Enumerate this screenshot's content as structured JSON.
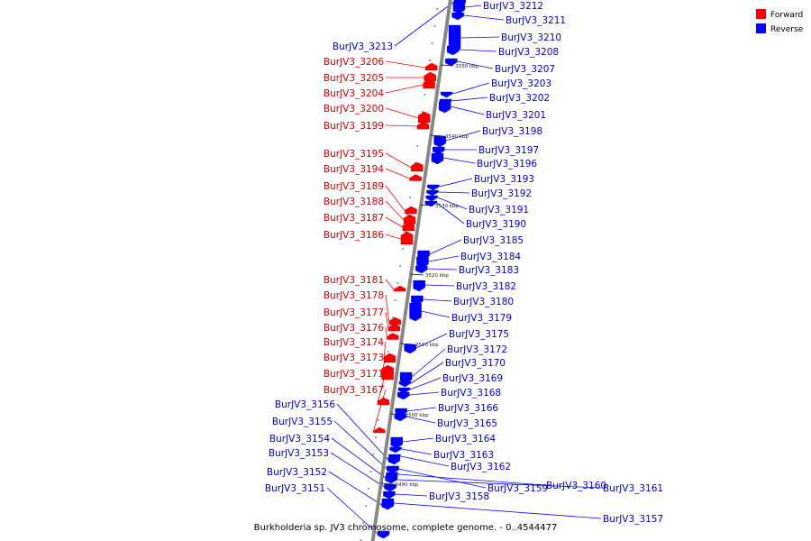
{
  "caption": "Burkholderia sp. JV3 chromosome, complete genome. - 0..4544477",
  "colors": {
    "forward": "#ff0000",
    "reverse": "#0000ff",
    "backbone": "#888888",
    "backbone_edge": "#444444",
    "forward_label": "#cc0000",
    "reverse_label": "#0000cc"
  },
  "legend": {
    "forward_label": "Forward",
    "reverse_label": "Reverse"
  },
  "ticks": [
    "3550 kbp",
    "3540 kbp",
    "3530 kbp",
    "3520 kbp",
    "3510 kbp",
    "3500 kbp",
    "3490 kbp"
  ],
  "forward_genes": [
    "BurJV3_3206",
    "BurJV3_3205",
    "BurJV3_3204",
    "BurJV3_3200",
    "BurJV3_3199",
    "BurJV3_3195",
    "BurJV3_3194",
    "BurJV3_3189",
    "BurJV3_3188",
    "BurJV3_3187",
    "BurJV3_3186",
    "BurJV3_3181",
    "BurJV3_3178",
    "BurJV3_3177",
    "BurJV3_3176",
    "BurJV3_3174",
    "BurJV3_3173",
    "BurJV3_3171",
    "BurJV3_3167"
  ],
  "reverse_genes_left": [
    "BurJV3_3213",
    "BurJV3_3156",
    "BurJV3_3155",
    "BurJV3_3154",
    "BurJV3_3153",
    "BurJV3_3152",
    "BurJV3_3151"
  ],
  "reverse_genes_right": [
    "BurJV3_3212",
    "BurJV3_3211",
    "BurJV3_3210",
    "BurJV3_3208",
    "BurJV3_3207",
    "BurJV3_3203",
    "BurJV3_3202",
    "BurJV3_3201",
    "BurJV3_3198",
    "BurJV3_3197",
    "BurJV3_3196",
    "BurJV3_3193",
    "BurJV3_3192",
    "BurJV3_3191",
    "BurJV3_3190",
    "BurJV3_3185",
    "BurJV3_3184",
    "BurJV3_3183",
    "BurJV3_3182",
    "BurJV3_3180",
    "BurJV3_3179",
    "BurJV3_3175",
    "BurJV3_3172",
    "BurJV3_3170",
    "BurJV3_3169",
    "BurJV3_3168",
    "BurJV3_3166",
    "BurJV3_3165",
    "BurJV3_3164",
    "BurJV3_3163",
    "BurJV3_3162",
    "BurJV3_3159",
    "BurJV3_3160",
    "BurJV3_3161",
    "BurJV3_3158",
    "BurJV3_3157"
  ]
}
